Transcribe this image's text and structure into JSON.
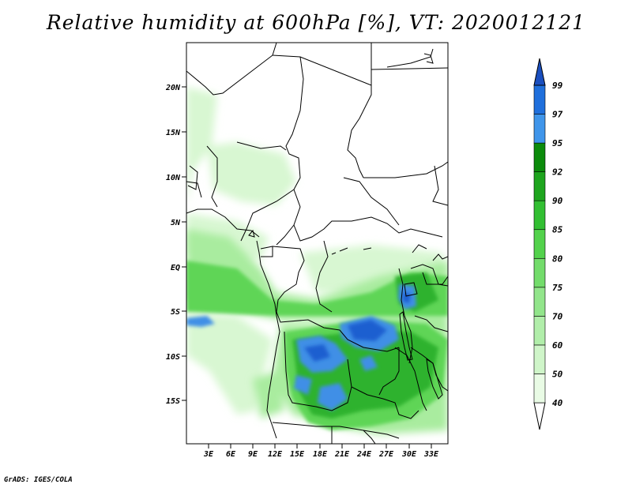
{
  "title": "Relative humidity at 600hPa [%], VT: 2020012121",
  "credit": "GrADS: IGES/COLA",
  "map": {
    "lat_labels": [
      "20N",
      "15N",
      "10N",
      "5N",
      "EQ",
      "5S",
      "10S",
      "15S"
    ],
    "lon_labels": [
      "3E",
      "6E",
      "9E",
      "12E",
      "15E",
      "18E",
      "21E",
      "24E",
      "27E",
      "30E",
      "33E"
    ]
  },
  "colorbar": {
    "levels": [
      "40",
      "50",
      "60",
      "70",
      "75",
      "80",
      "85",
      "90",
      "92",
      "95",
      "97",
      "99"
    ],
    "colors": [
      "#ffffff",
      "#e9fbe5",
      "#cff5c9",
      "#b1eeaa",
      "#92e58b",
      "#73dc6b",
      "#53d24c",
      "#32bf32",
      "#1ea51e",
      "#0b8b0b",
      "#3f95ea",
      "#1f6fdc",
      "#1a4fbf"
    ]
  }
}
